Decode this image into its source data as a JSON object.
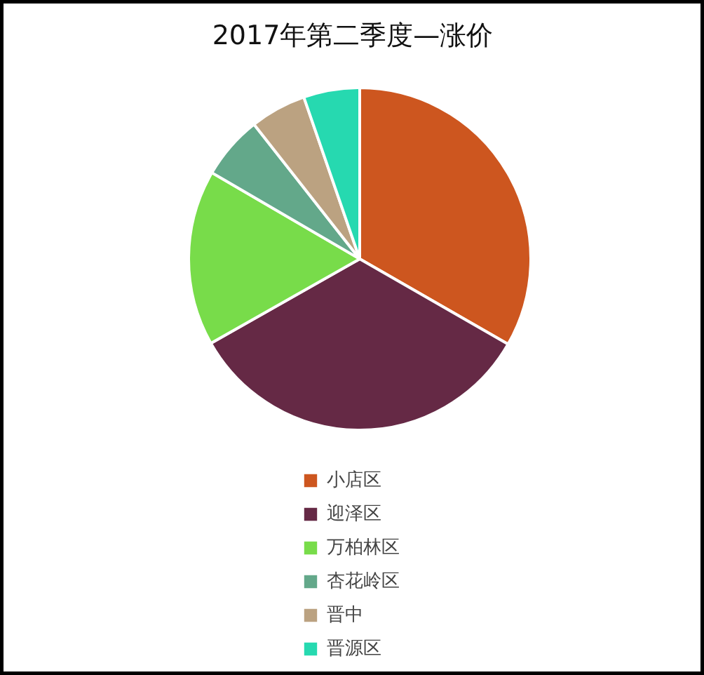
{
  "chart_data": {
    "type": "pie",
    "title": "2017年第二季度—涨价",
    "categories": [
      "小店区",
      "迎泽区",
      "万柏林区",
      "杏花岭区",
      "晋中",
      "晋源区"
    ],
    "values": [
      33.3,
      33.5,
      16.6,
      6.0,
      5.3,
      5.3
    ],
    "colors": [
      "#cd561f",
      "#652945",
      "#78dc4a",
      "#63a88a",
      "#bba281",
      "#26d9b0"
    ],
    "legend": "bottom"
  }
}
